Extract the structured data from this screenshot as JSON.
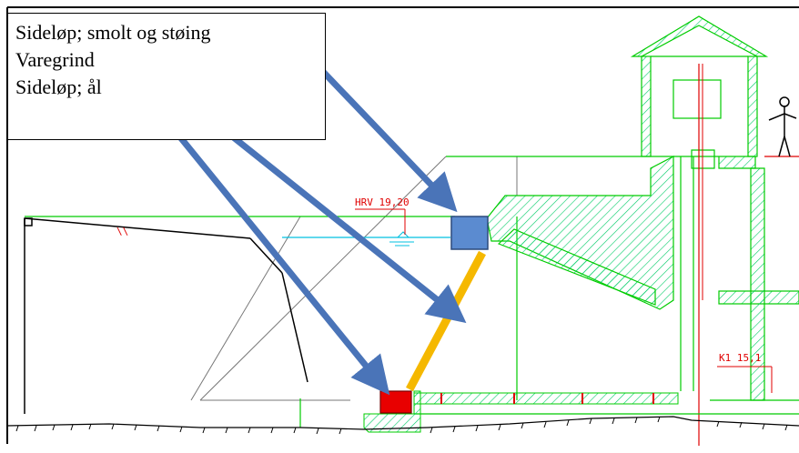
{
  "legend": {
    "items": [
      {
        "label": "Sideløp; smolt og støing"
      },
      {
        "label": "Varegrind"
      },
      {
        "label": "Sideløp; ål"
      }
    ]
  },
  "annotations": {
    "hrv": "HRV  19,20",
    "k1": "K1   15,1"
  },
  "colors": {
    "structure": "#00cc00",
    "hatch": "#00cc66",
    "arrow": "#4a74b8",
    "smolt_outlet": "#5b8bd0",
    "eel_outlet": "#e80000",
    "grating": "#f5b800",
    "water": "#00c0e0",
    "marker": "#e00000",
    "ground": "#222222"
  },
  "icons": [
    "person-figure-icon"
  ]
}
